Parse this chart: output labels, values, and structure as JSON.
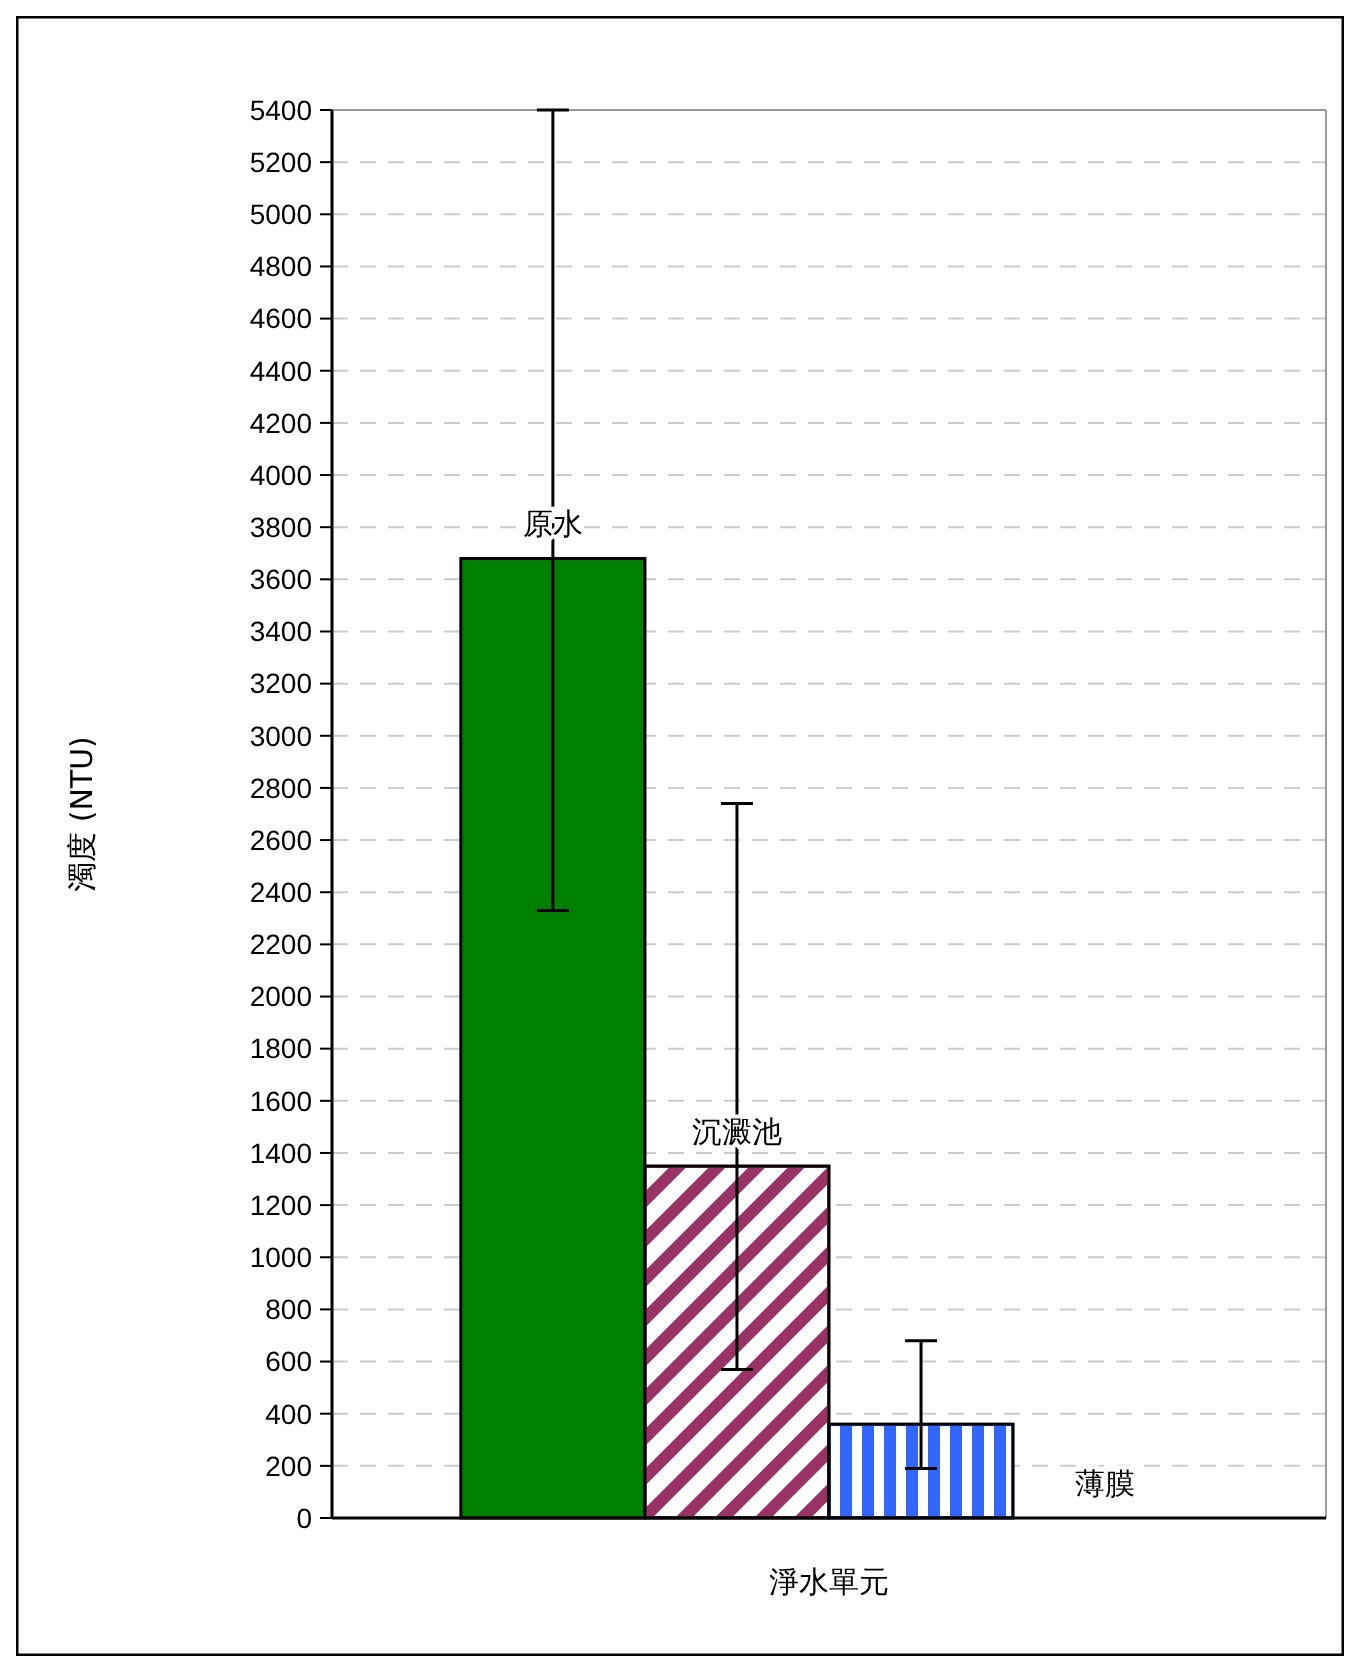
{
  "chart_data": {
    "type": "bar",
    "xlabel": "淨水單元",
    "ylabel": "濁度 (NTU)",
    "categories": [
      "原水",
      "沉澱池",
      null,
      "薄膜"
    ],
    "values": [
      3680,
      1350,
      360,
      0
    ],
    "colors": [
      "#008000",
      "#993366",
      "#3366ff",
      "#808080"
    ],
    "errors": [
      [
        2330,
        5400
      ],
      [
        570,
        2740
      ],
      [
        190,
        680
      ],
      null
    ],
    "ylim": [
      0,
      5400
    ],
    "yticks": [
      0,
      200,
      400,
      600,
      800,
      1000,
      1200,
      1400,
      1600,
      1800,
      2000,
      2200,
      2400,
      2600,
      2800,
      3000,
      3200,
      3400,
      3600,
      3800,
      4000,
      4200,
      4400,
      4600,
      4800,
      5000,
      5200,
      5400
    ],
    "grid": "y"
  }
}
